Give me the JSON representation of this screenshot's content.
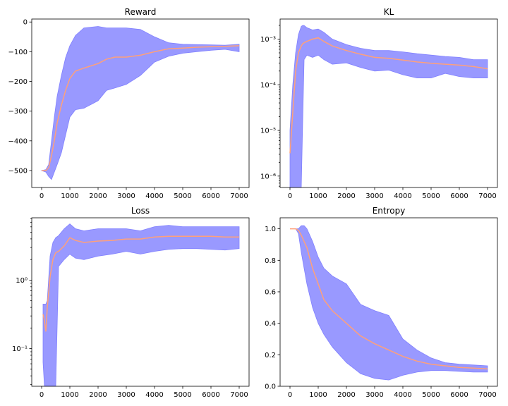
{
  "colors": {
    "band": "#8080ff",
    "band_opacity": 0.8,
    "mean_line": "#ffa07a",
    "axes": "#000000"
  },
  "chart_data": [
    {
      "type": "area",
      "title": "Reward",
      "xlabel": "",
      "ylabel": "",
      "xlim": [
        -350,
        7350
      ],
      "ylim": [
        -557,
        10
      ],
      "yscale": "linear",
      "xticks": [
        0,
        1000,
        2000,
        3000,
        4000,
        5000,
        6000,
        7000
      ],
      "xtick_labels": [
        "0",
        "1000",
        "2000",
        "3000",
        "4000",
        "5000",
        "6000",
        "7000"
      ],
      "yticks": [
        0,
        -100,
        -200,
        -300,
        -400,
        -500
      ],
      "ytick_labels": [
        "0",
        "−100",
        "−200",
        "−300",
        "−400",
        "−500"
      ],
      "grid": false,
      "series": [
        {
          "x": [
            0,
            150,
            250,
            350,
            450,
            550,
            700,
            850,
            1000,
            1200,
            1500,
            2000,
            2300,
            2600,
            3000,
            3500,
            4000,
            4500,
            5000,
            5500,
            6000,
            6500,
            7000
          ],
          "mean": [
            -500,
            -500,
            -490,
            -450,
            -400,
            -340,
            -280,
            -230,
            -190,
            -165,
            -155,
            -140,
            -125,
            -118,
            -118,
            -112,
            -100,
            -90,
            -88,
            -85,
            -83,
            -82,
            -80
          ],
          "upper": [
            -500,
            -497,
            -480,
            -400,
            -320,
            -250,
            -180,
            -120,
            -80,
            -45,
            -20,
            -15,
            -20,
            -20,
            -20,
            -25,
            -50,
            -70,
            -75,
            -76,
            -77,
            -78,
            -75
          ],
          "lower": [
            -500,
            -505,
            -520,
            -530,
            -505,
            -480,
            -440,
            -380,
            -320,
            -295,
            -290,
            -265,
            -230,
            -222,
            -210,
            -180,
            -135,
            -115,
            -105,
            -100,
            -95,
            -92,
            -100
          ]
        }
      ]
    },
    {
      "type": "area",
      "title": "KL",
      "xlabel": "",
      "ylabel": "",
      "xlim": [
        -350,
        7350
      ],
      "yscale": "log",
      "ylim_log10": [
        -6.25,
        -2.56
      ],
      "xticks": [
        0,
        1000,
        2000,
        3000,
        4000,
        5000,
        6000,
        7000
      ],
      "xtick_labels": [
        "0",
        "1000",
        "2000",
        "3000",
        "4000",
        "5000",
        "6000",
        "7000"
      ],
      "yticks_log10": [
        -6,
        -5,
        -4,
        -3
      ],
      "ytick_labels": [
        "10⁻⁶",
        "10⁻⁵",
        "10⁻⁴",
        "10⁻³"
      ],
      "grid": false,
      "series": [
        {
          "x": [
            0,
            100,
            200,
            300,
            400,
            450,
            500,
            600,
            800,
            1000,
            1200,
            1500,
            2000,
            2500,
            3000,
            3500,
            4000,
            4500,
            5000,
            5500,
            6000,
            6500,
            7000
          ],
          "mean_log10": [
            -5.5,
            -4.6,
            -3.7,
            -3.3,
            -3.15,
            -3.1,
            -3.08,
            -3.05,
            -3.0,
            -2.97,
            -3.05,
            -3.15,
            -3.25,
            -3.33,
            -3.4,
            -3.42,
            -3.46,
            -3.5,
            -3.53,
            -3.55,
            -3.57,
            -3.6,
            -3.65
          ],
          "upper_log10": [
            -5.0,
            -4.0,
            -3.3,
            -2.9,
            -2.72,
            -2.7,
            -2.7,
            -2.75,
            -2.8,
            -2.78,
            -2.85,
            -3.0,
            -3.12,
            -3.2,
            -3.25,
            -3.25,
            -3.28,
            -3.32,
            -3.35,
            -3.38,
            -3.4,
            -3.45,
            -3.45
          ],
          "lower_log10": [
            -6.25,
            -6.25,
            -6.25,
            -6.25,
            -6.25,
            -4.8,
            -3.45,
            -3.35,
            -3.4,
            -3.35,
            -3.45,
            -3.55,
            -3.52,
            -3.62,
            -3.7,
            -3.68,
            -3.78,
            -3.85,
            -3.85,
            -3.75,
            -3.82,
            -3.85,
            -3.85
          ]
        }
      ]
    },
    {
      "type": "area",
      "title": "Loss",
      "xlabel": "",
      "ylabel": "",
      "xlim": [
        -350,
        7350
      ],
      "yscale": "log",
      "ylim_log10": [
        -1.55,
        0.91
      ],
      "xticks": [
        0,
        1000,
        2000,
        3000,
        4000,
        5000,
        6000,
        7000
      ],
      "xtick_labels": [
        "0",
        "1000",
        "2000",
        "3000",
        "4000",
        "5000",
        "6000",
        "7000"
      ],
      "yticks_log10": [
        0,
        -1
      ],
      "ytick_labels": [
        "10⁰",
        "10⁻¹"
      ],
      "grid": false,
      "series": [
        {
          "x": [
            50,
            100,
            150,
            200,
            300,
            400,
            500,
            600,
            800,
            1000,
            1200,
            1500,
            2000,
            2500,
            3000,
            3500,
            4000,
            4500,
            5000,
            5500,
            6000,
            6500,
            7000
          ],
          "mean_log10": [
            -0.5,
            -0.6,
            -0.75,
            -0.4,
            0.05,
            0.3,
            0.4,
            0.42,
            0.5,
            0.62,
            0.58,
            0.55,
            0.57,
            0.58,
            0.6,
            0.6,
            0.63,
            0.64,
            0.64,
            0.64,
            0.64,
            0.63,
            0.63
          ],
          "upper_log10": [
            -0.35,
            -0.35,
            -0.35,
            -0.3,
            0.35,
            0.55,
            0.62,
            0.65,
            0.75,
            0.82,
            0.75,
            0.72,
            0.75,
            0.75,
            0.75,
            0.72,
            0.78,
            0.8,
            0.78,
            0.78,
            0.78,
            0.78,
            0.78
          ],
          "lower_log10": [
            -1.2,
            -1.55,
            -1.55,
            -1.55,
            -1.55,
            -1.55,
            -1.55,
            0.2,
            0.3,
            0.38,
            0.32,
            0.3,
            0.35,
            0.38,
            0.42,
            0.38,
            0.42,
            0.45,
            0.46,
            0.46,
            0.45,
            0.44,
            0.46
          ]
        }
      ]
    },
    {
      "type": "area",
      "title": "Entropy",
      "xlabel": "",
      "ylabel": "",
      "xlim": [
        -350,
        7350
      ],
      "ylim": [
        0,
        1.07
      ],
      "yscale": "linear",
      "xticks": [
        0,
        1000,
        2000,
        3000,
        4000,
        5000,
        6000,
        7000
      ],
      "xtick_labels": [
        "0",
        "1000",
        "2000",
        "3000",
        "4000",
        "5000",
        "6000",
        "7000"
      ],
      "yticks": [
        0,
        0.2,
        0.4,
        0.6,
        0.8,
        1.0
      ],
      "ytick_labels": [
        "0.0",
        "0.2",
        "0.4",
        "0.6",
        "0.8",
        "1.0"
      ],
      "grid": false,
      "series": [
        {
          "x": [
            0,
            200,
            300,
            400,
            500,
            600,
            800,
            1000,
            1200,
            1500,
            2000,
            2500,
            3000,
            3500,
            4000,
            4500,
            5000,
            5500,
            6000,
            6500,
            7000
          ],
          "mean": [
            1.0,
            1.0,
            0.99,
            0.96,
            0.92,
            0.88,
            0.75,
            0.65,
            0.55,
            0.48,
            0.4,
            0.32,
            0.27,
            0.23,
            0.19,
            0.16,
            0.14,
            0.13,
            0.12,
            0.115,
            0.11
          ],
          "upper": [
            1.0,
            1.0,
            1.0,
            1.02,
            1.02,
            1.0,
            0.92,
            0.82,
            0.75,
            0.7,
            0.65,
            0.52,
            0.48,
            0.45,
            0.3,
            0.23,
            0.18,
            0.15,
            0.14,
            0.135,
            0.13
          ],
          "lower": [
            1.0,
            1.0,
            0.97,
            0.85,
            0.75,
            0.65,
            0.5,
            0.4,
            0.33,
            0.25,
            0.15,
            0.08,
            0.05,
            0.04,
            0.07,
            0.09,
            0.1,
            0.1,
            0.095,
            0.09,
            0.09
          ]
        }
      ]
    }
  ]
}
